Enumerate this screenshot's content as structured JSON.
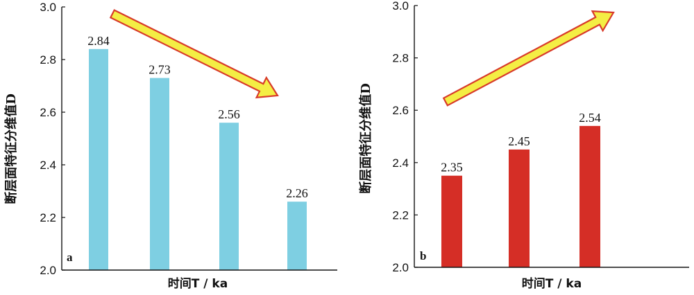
{
  "chart_data": [
    {
      "type": "bar",
      "panel_label": "a",
      "categories": [
        "",
        "",
        "",
        ""
      ],
      "values": [
        2.84,
        2.73,
        2.56,
        2.26
      ],
      "data_labels": [
        "2.84",
        "2.73",
        "2.56",
        "2.26"
      ],
      "bar_color": "#7ECFE2",
      "ylabel": "断层面特征分维值D",
      "xlabel": "时间T / ka",
      "ylim": [
        2.0,
        3.0
      ],
      "yticks": [
        "2.0",
        "2.2",
        "2.4",
        "2.6",
        "2.8",
        "3.0"
      ],
      "grid": false,
      "annotation": "arrow-down-right",
      "arrow_color": "#F4EE44",
      "arrow_outline": "#D83A2A"
    },
    {
      "type": "bar",
      "panel_label": "b",
      "categories": [
        "",
        "",
        ""
      ],
      "values": [
        2.35,
        2.45,
        2.54
      ],
      "data_labels": [
        "2.35",
        "2.45",
        "2.54"
      ],
      "bar_color": "#D52E26",
      "ylabel": "断层面特征分维值D",
      "xlabel": "时间T / ka",
      "ylim": [
        2.0,
        3.0
      ],
      "yticks": [
        "2.0",
        "2.2",
        "2.4",
        "2.6",
        "2.8",
        "3.0"
      ],
      "grid": false,
      "annotation": "arrow-up-right",
      "arrow_color": "#F4EE44",
      "arrow_outline": "#D83A2A"
    }
  ]
}
